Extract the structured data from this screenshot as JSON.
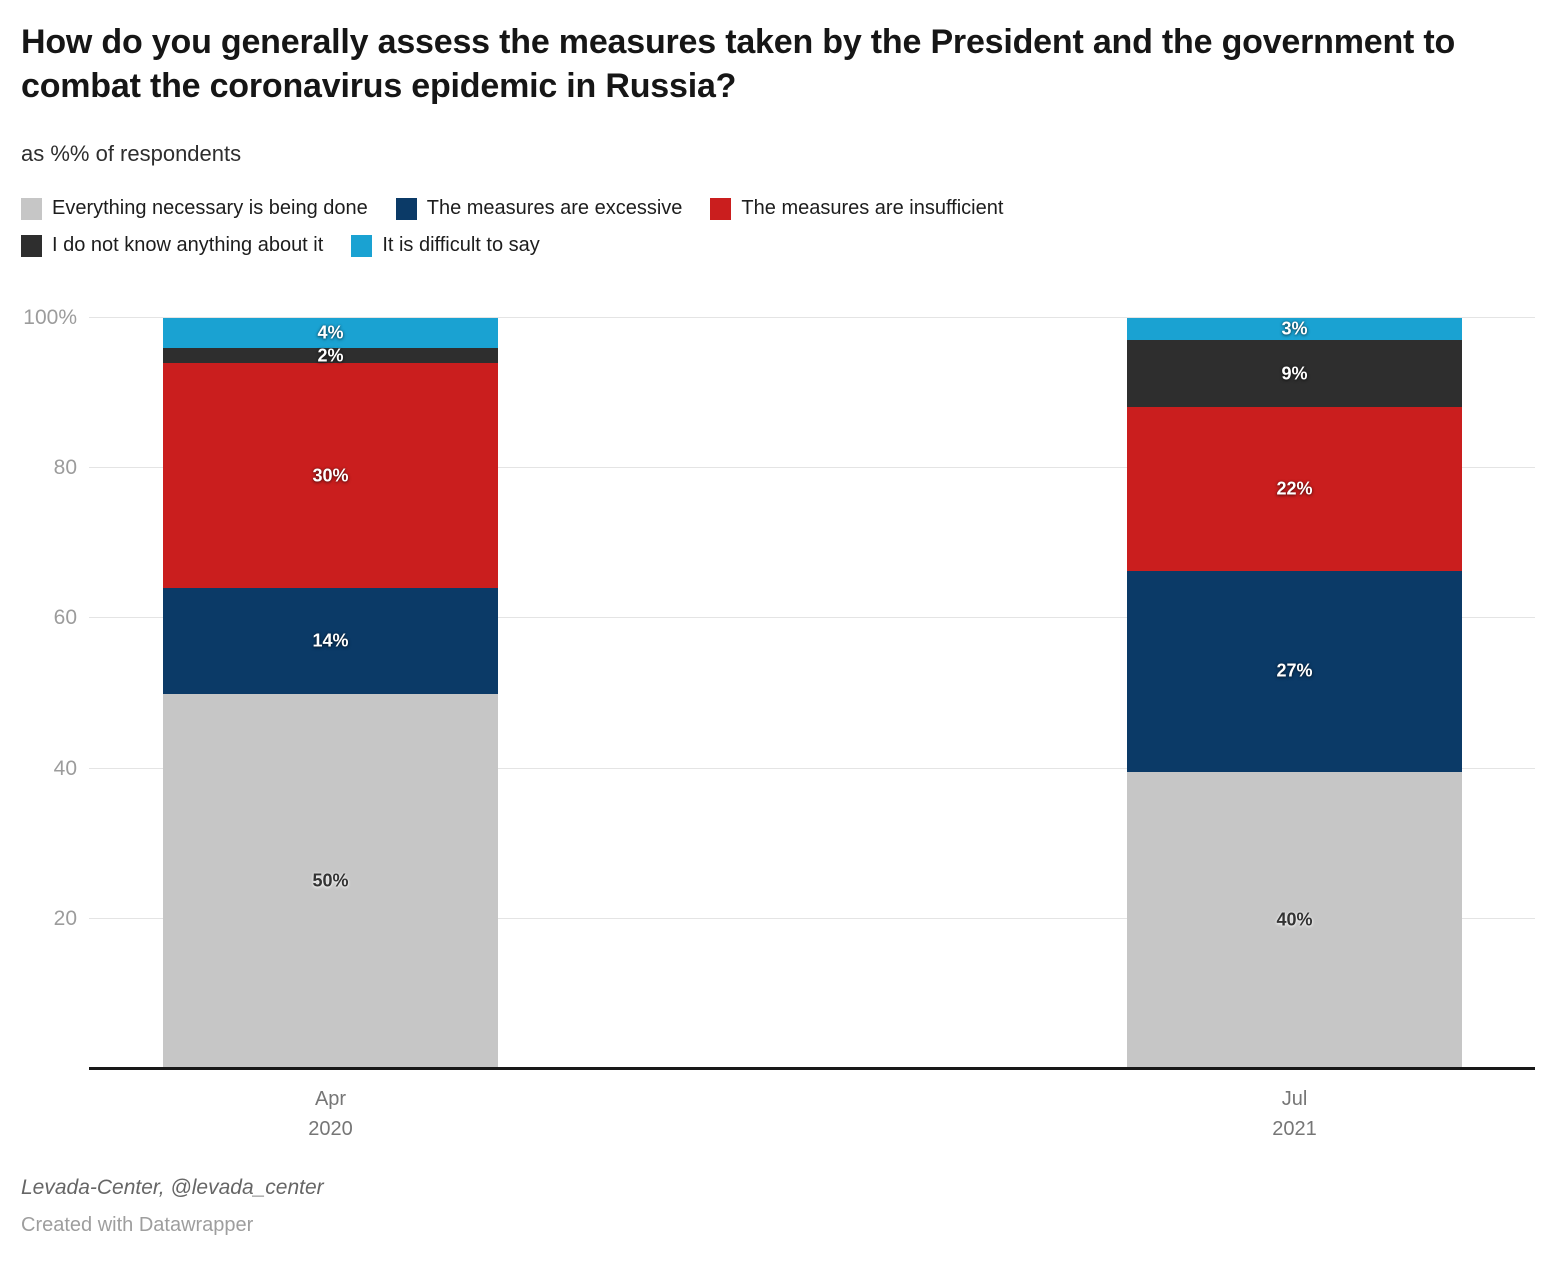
{
  "chart_data": {
    "type": "bar",
    "stacked": true,
    "title": "How do you generally assess the measures taken by the President and the government to combat the coronavirus epidemic in Russia?",
    "subtitle": "as %% of respondents",
    "categories": [
      [
        "Apr",
        "2020"
      ],
      [
        "Jul",
        "2021"
      ]
    ],
    "series": [
      {
        "name": "Everything necessary is being done",
        "color": "#c6c6c6",
        "label_color": "#333333",
        "values": [
          50,
          40
        ]
      },
      {
        "name": "The measures are excessive",
        "color": "#0b3a67",
        "label_color": "#ffffff",
        "values": [
          14,
          27
        ]
      },
      {
        "name": "The measures are insufficient",
        "color": "#ca1e1e",
        "label_color": "#ffffff",
        "values": [
          30,
          22
        ]
      },
      {
        "name": "I do not know anything about it",
        "color": "#2e2e2e",
        "label_color": "#ffffff",
        "values": [
          2,
          9
        ]
      },
      {
        "name": "It is difficult to say",
        "color": "#1aa2d2",
        "label_color": "#ffffff",
        "values": [
          4,
          3
        ]
      }
    ],
    "value_suffix": "%",
    "ylim": [
      0,
      100
    ],
    "grid": "horizontal",
    "legend_position": "top"
  },
  "axis": {
    "y_ticks": [
      {
        "value": 20,
        "label": "20"
      },
      {
        "value": 40,
        "label": "40"
      },
      {
        "value": 60,
        "label": "60"
      },
      {
        "value": 80,
        "label": "80"
      },
      {
        "value": 100,
        "label": "100%"
      }
    ]
  },
  "legend": {
    "rows": [
      [
        0,
        1,
        2
      ],
      [
        3,
        4
      ]
    ]
  },
  "footer": {
    "source": "Levada-Center, @levada_center",
    "credit": "Created with Datawrapper"
  }
}
